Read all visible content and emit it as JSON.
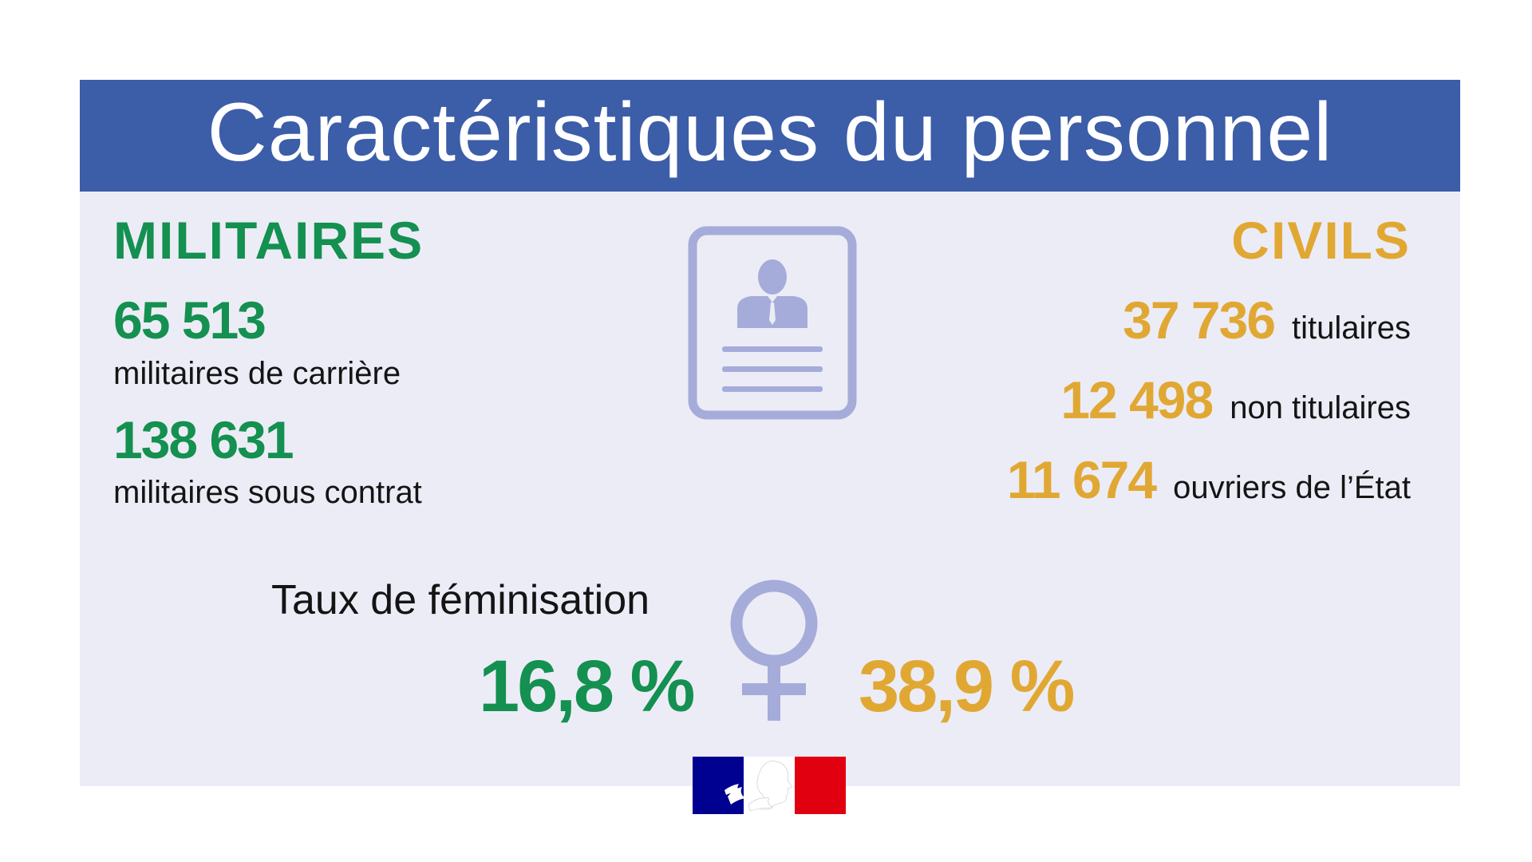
{
  "banner": {
    "title": "Caractéristiques du personnel"
  },
  "militaires": {
    "heading": "MILITAIRES",
    "stats": [
      {
        "value": "65 513",
        "label": "militaires de carrière"
      },
      {
        "value": "138 631",
        "label": "militaires sous contrat"
      }
    ]
  },
  "civils": {
    "heading": "CIVILS",
    "stats": [
      {
        "value": "37 736",
        "label": "titulaires"
      },
      {
        "value": "12 498",
        "label": "non titulaires"
      },
      {
        "value": "11 674",
        "label": "ouvriers de l’État"
      }
    ]
  },
  "feminisation": {
    "label": "Taux de féminisation",
    "militaires_rate": "16,8 %",
    "civils_rate": "38,9 %"
  },
  "icons": {
    "profile": "profile-card-icon",
    "female": "female-symbol-icon",
    "logo": "marianne-logo"
  },
  "colors": {
    "banner": "#3c5da8",
    "background": "#ececf7",
    "militaires": "#149050",
    "civils": "#e0a833",
    "icon": "#a5acd9"
  }
}
